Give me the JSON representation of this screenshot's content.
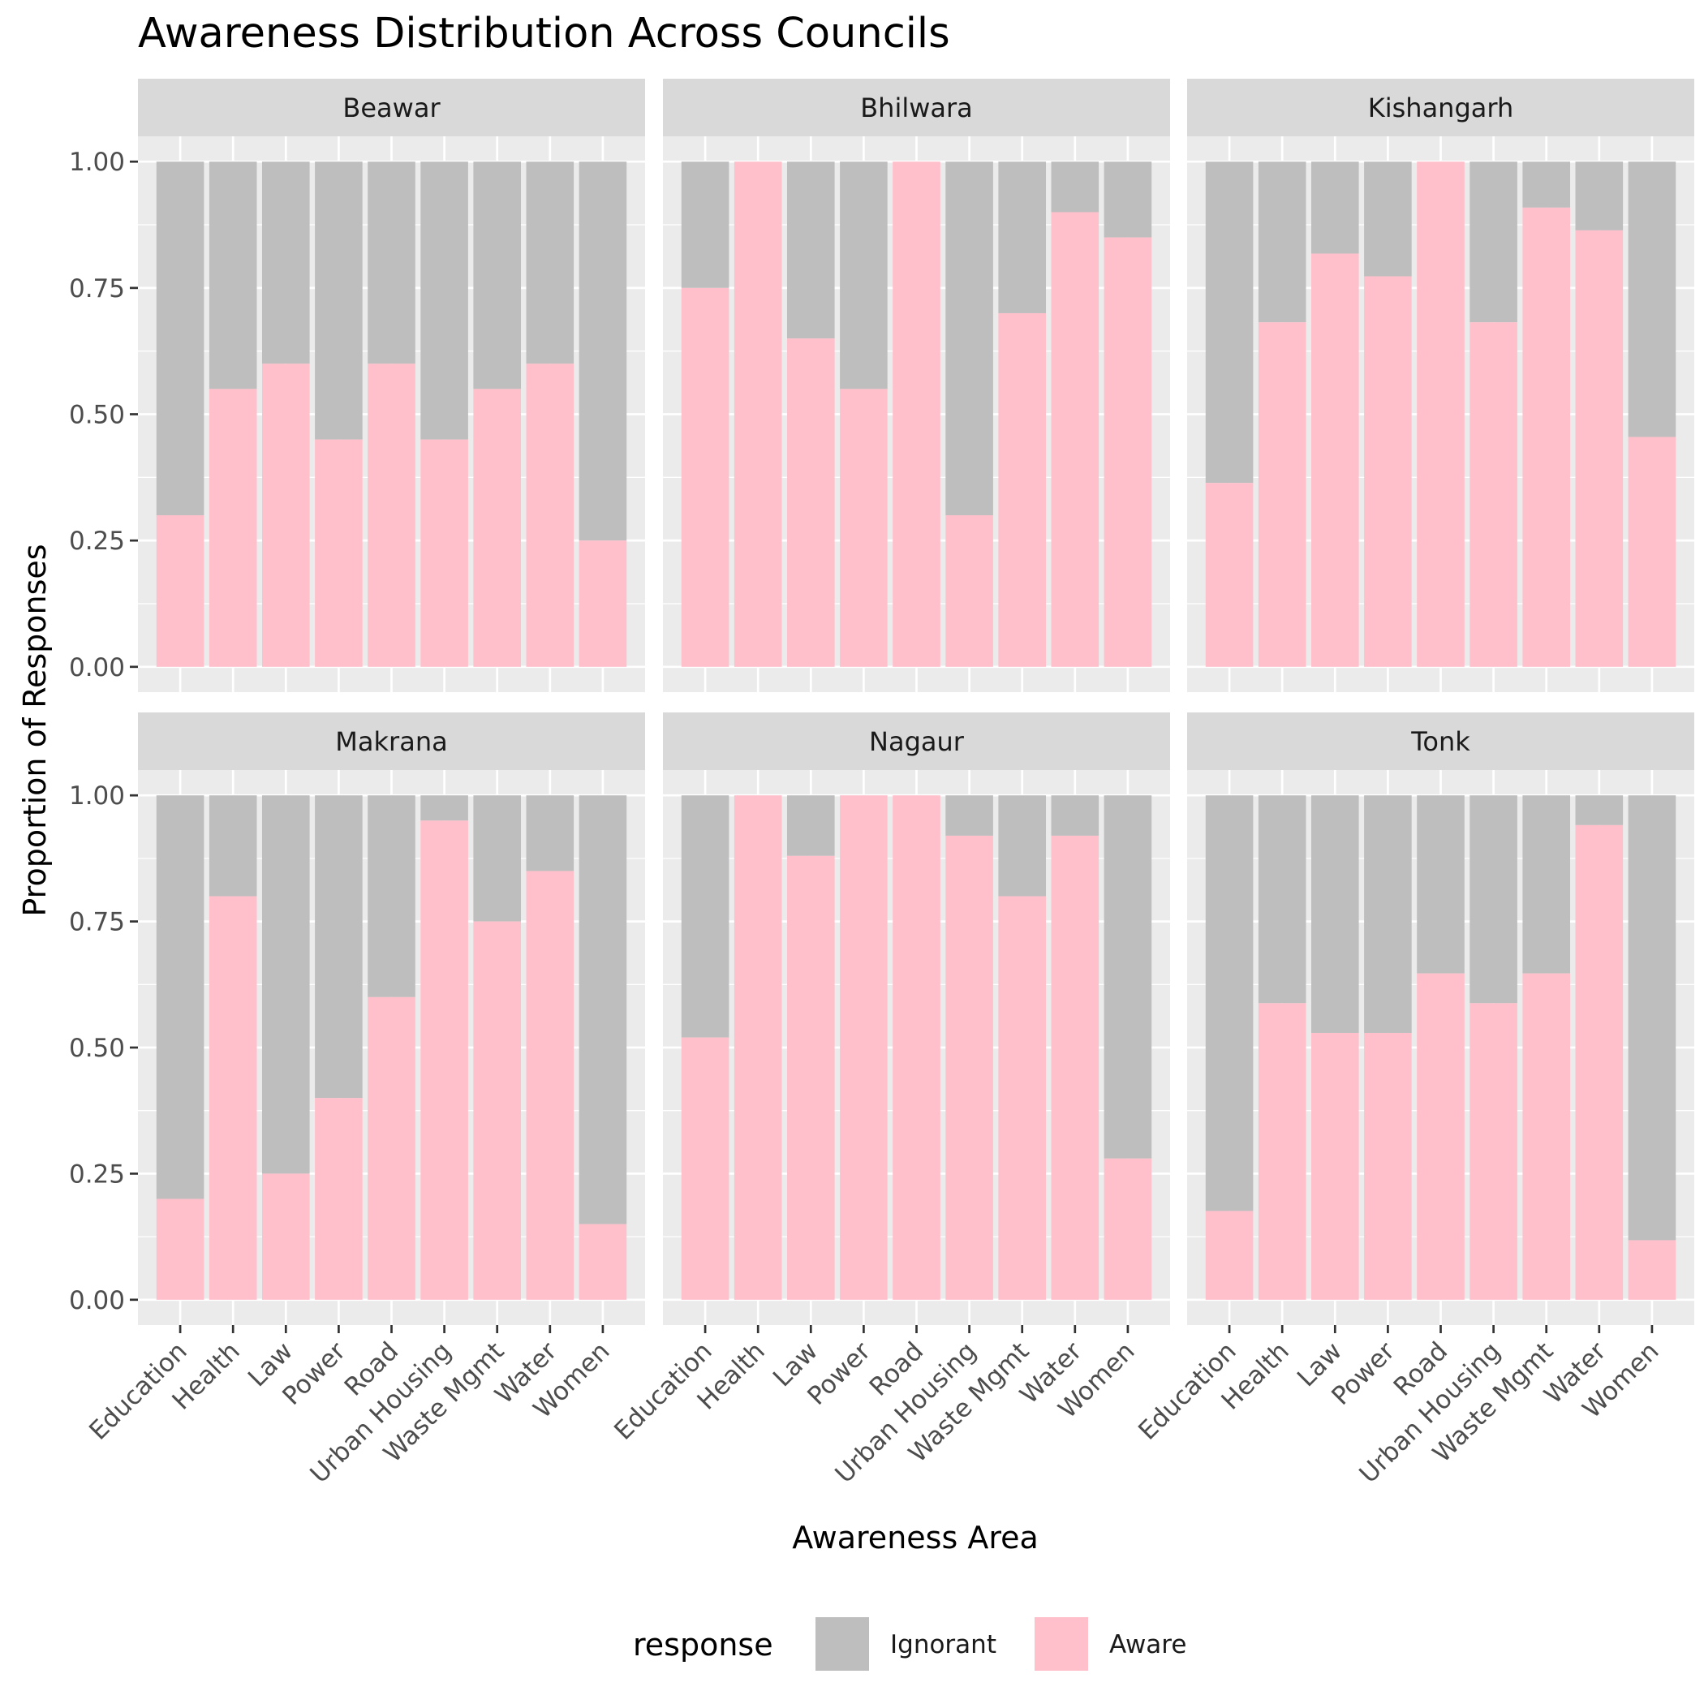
{
  "chart_data": {
    "type": "bar",
    "stacked": true,
    "title": "Awareness Distribution Across Councils",
    "xlabel": "Awareness Area",
    "ylabel": "Proportion of Responses",
    "ylim": [
      0,
      1
    ],
    "y_ticks": [
      "0.00",
      "0.25",
      "0.50",
      "0.75",
      "1.00"
    ],
    "grid": true,
    "legend": {
      "title": "response",
      "position": "bottom",
      "entries": [
        {
          "name": "Ignorant",
          "color": "#bebebe"
        },
        {
          "name": "Aware",
          "color": "#ffc0cb"
        }
      ]
    },
    "categories": [
      "Education",
      "Health",
      "Law",
      "Power",
      "Road",
      "Urban Housing",
      "Waste Mgmt",
      "Water",
      "Women"
    ],
    "panels": [
      {
        "name": "Beawar",
        "aware": [
          0.3,
          0.55,
          0.6,
          0.45,
          0.6,
          0.45,
          0.55,
          0.6,
          0.25
        ]
      },
      {
        "name": "Bhilwara",
        "aware": [
          0.75,
          1.0,
          0.65,
          0.55,
          1.0,
          0.3,
          0.7,
          0.9,
          0.85
        ]
      },
      {
        "name": "Kishangarh",
        "aware": [
          0.364,
          0.682,
          0.818,
          0.773,
          1.0,
          0.682,
          0.909,
          0.864,
          0.455
        ]
      },
      {
        "name": "Makrana",
        "aware": [
          0.2,
          0.8,
          0.25,
          0.4,
          0.6,
          0.95,
          0.75,
          0.85,
          0.15
        ]
      },
      {
        "name": "Nagaur",
        "aware": [
          0.52,
          1.0,
          0.88,
          1.0,
          1.0,
          0.92,
          0.8,
          0.92,
          0.28
        ]
      },
      {
        "name": "Tonk",
        "aware": [
          0.176,
          0.588,
          0.529,
          0.529,
          0.647,
          0.588,
          0.647,
          0.941,
          0.118
        ]
      }
    ]
  }
}
